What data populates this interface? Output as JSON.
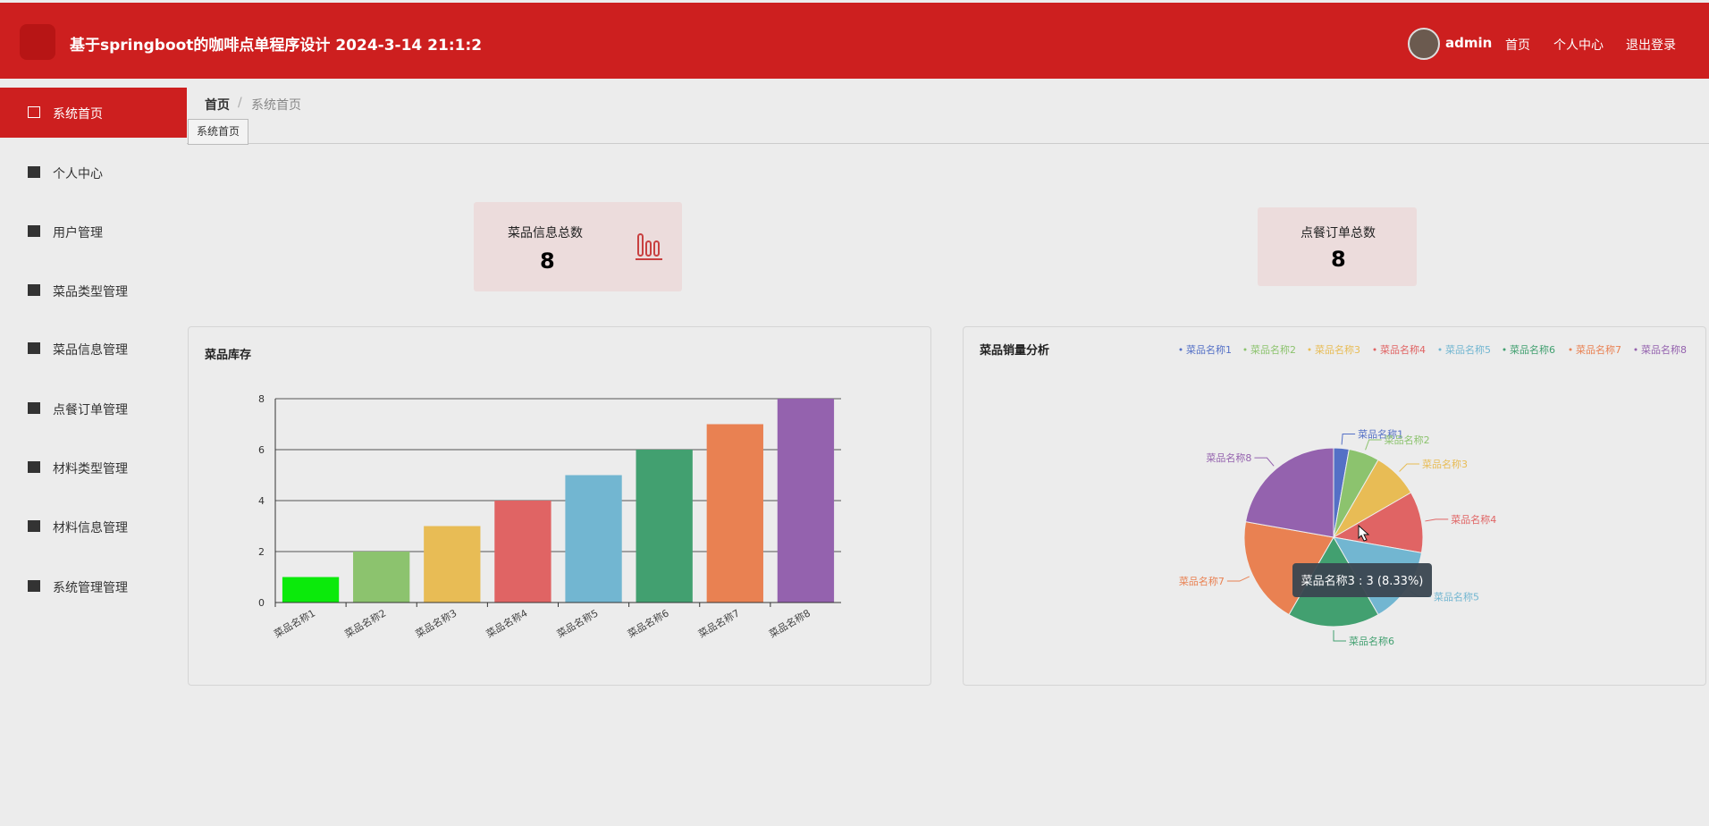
{
  "header": {
    "title": "基于springboot的咖啡点单程序设计 2024-3-14 21:1:2",
    "user": "admin",
    "links": [
      "首页",
      "个人中心",
      "退出登录"
    ]
  },
  "menu": [
    "系统首页",
    "个人中心",
    "用户管理",
    "菜品类型管理",
    "菜品信息管理",
    "点餐订单管理",
    "材料类型管理",
    "材料信息管理",
    "系统管理管理"
  ],
  "breadcrumb": [
    "首页",
    "系统首页"
  ],
  "tab": "系统首页",
  "stats": [
    {
      "label": "菜品信息总数",
      "value": 8
    },
    {
      "label": "点餐订单总数",
      "value": 8
    }
  ],
  "chart_data": [
    {
      "type": "bar",
      "title": "菜品库存",
      "categories": [
        "菜品名称1",
        "菜品名称2",
        "菜品名称3",
        "菜品名称4",
        "菜品名称5",
        "菜品名称6",
        "菜品名称7",
        "菜品名称8"
      ],
      "values": [
        1,
        2,
        3,
        4,
        5,
        6,
        7,
        8
      ],
      "colors": [
        "#0bea0b",
        "#8cc36e",
        "#e8bc55",
        "#e06464",
        "#72b6d1",
        "#42a070",
        "#e98152",
        "#9462ae"
      ],
      "ylim": [
        0,
        8
      ],
      "yticks": [
        0,
        2,
        4,
        6,
        8
      ],
      "grid": true
    },
    {
      "type": "pie",
      "title": "菜品销量分析",
      "categories": [
        "菜品名称1",
        "菜品名称2",
        "菜品名称3",
        "菜品名称4",
        "菜品名称5",
        "菜品名称6",
        "菜品名称7",
        "菜品名称8"
      ],
      "values": [
        1,
        2,
        3,
        4,
        5,
        6,
        7,
        8
      ],
      "colors": [
        "#5470c6",
        "#8cc36e",
        "#e8bc55",
        "#e06464",
        "#72b6d1",
        "#42a070",
        "#e98152",
        "#9462ae"
      ],
      "tooltip": "菜品名称3 : 3 (8.33%)"
    }
  ]
}
